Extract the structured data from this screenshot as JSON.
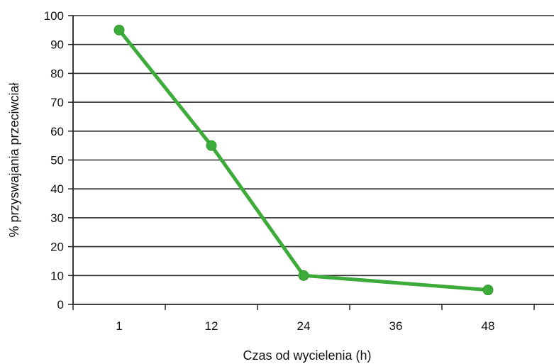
{
  "chart_data": {
    "type": "line",
    "title": "",
    "xlabel": "Czas od wycielenia (h)",
    "ylabel": "% przyswajania przeciwciał",
    "categories": [
      "1",
      "12",
      "24",
      "36",
      "48"
    ],
    "series": [
      {
        "x": [
          "1",
          "12",
          "24",
          "48"
        ],
        "values": [
          95,
          55,
          10,
          5
        ],
        "color": "#3dab3a"
      }
    ],
    "ylim": [
      0,
      100
    ],
    "yticks": [
      0,
      10,
      20,
      30,
      40,
      50,
      60,
      70,
      80,
      90,
      100
    ],
    "grid": "horizontal",
    "legend": "none"
  }
}
